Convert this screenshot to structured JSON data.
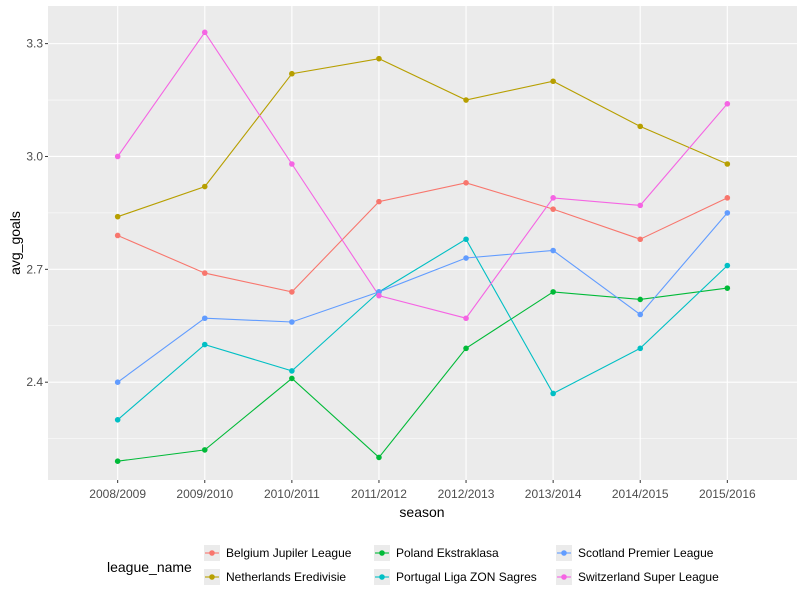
{
  "chart_data": {
    "type": "line",
    "xlabel": "season",
    "ylabel": "avg_goals",
    "categories": [
      "2008/2009",
      "2009/2010",
      "2010/2011",
      "2011/2012",
      "2012/2013",
      "2013/2014",
      "2014/2015",
      "2015/2016"
    ],
    "yticks": [
      "2.4",
      "2.7",
      "3.0",
      "3.3"
    ],
    "ylim": [
      2.14,
      3.4
    ],
    "grid": true,
    "legend": {
      "title": "league_name",
      "position": "bottom"
    },
    "series": [
      {
        "name": "Belgium Jupiler League",
        "color": "#F8766D",
        "values": [
          2.79,
          2.69,
          2.64,
          2.88,
          2.93,
          2.86,
          2.78,
          2.89
        ]
      },
      {
        "name": "Netherlands Eredivisie",
        "color": "#B79F00",
        "values": [
          2.84,
          2.92,
          3.22,
          3.26,
          3.15,
          3.2,
          3.08,
          2.98
        ]
      },
      {
        "name": "Poland Ekstraklasa",
        "color": "#00BA38",
        "values": [
          2.19,
          2.22,
          2.41,
          2.2,
          2.49,
          2.64,
          2.62,
          2.65
        ]
      },
      {
        "name": "Portugal Liga ZON Sagres",
        "color": "#00BFC4",
        "values": [
          2.3,
          2.5,
          2.43,
          2.64,
          2.78,
          2.37,
          2.49,
          2.71
        ]
      },
      {
        "name": "Scotland Premier League",
        "color": "#619CFF",
        "values": [
          2.4,
          2.57,
          2.56,
          2.64,
          2.73,
          2.75,
          2.58,
          2.85
        ]
      },
      {
        "name": "Switzerland Super League",
        "color": "#F564E3",
        "values": [
          3.0,
          3.33,
          2.98,
          2.63,
          2.57,
          2.89,
          2.87,
          3.14
        ]
      }
    ]
  }
}
